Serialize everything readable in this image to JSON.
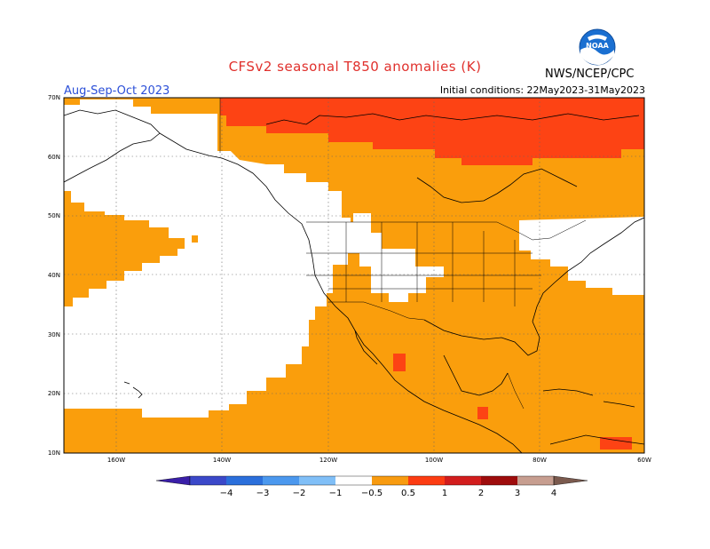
{
  "header": {
    "title": "CFSv2 seasonal T850 anomalies (K)",
    "agency": "NWS/NCEP/CPC",
    "season": "Aug-Sep-Oct 2023",
    "initial_conditions": "Initial conditions: 22May2023-31May2023",
    "logo_text": "NOAA"
  },
  "axes": {
    "lat_labels": [
      "70N",
      "60N",
      "50N",
      "40N",
      "30N",
      "20N",
      "10N"
    ],
    "lon_labels": [
      "160W",
      "140W",
      "120W",
      "100W",
      "80W",
      "60W"
    ]
  },
  "colorbar": {
    "tick_labels": [
      "−4",
      "−3",
      "−2",
      "−1",
      "−0.5",
      "0.5",
      "1",
      "2",
      "3",
      "4"
    ],
    "colors": [
      "#3a1fa8",
      "#3b48c9",
      "#2b6fdb",
      "#4b98ee",
      "#80bff7",
      "#ffffff",
      "#f89b10",
      "#fc3c12",
      "#d21d1d",
      "#9e0c0c",
      "#c79e90",
      "#7b5a4e"
    ]
  },
  "colors": {
    "anomaly_0_5_to_1": "#fa9e0c",
    "anomaly_1_to_2": "#fd4314",
    "anomaly_2_to_3": "#c0150f",
    "neutral": "#ffffff"
  }
}
